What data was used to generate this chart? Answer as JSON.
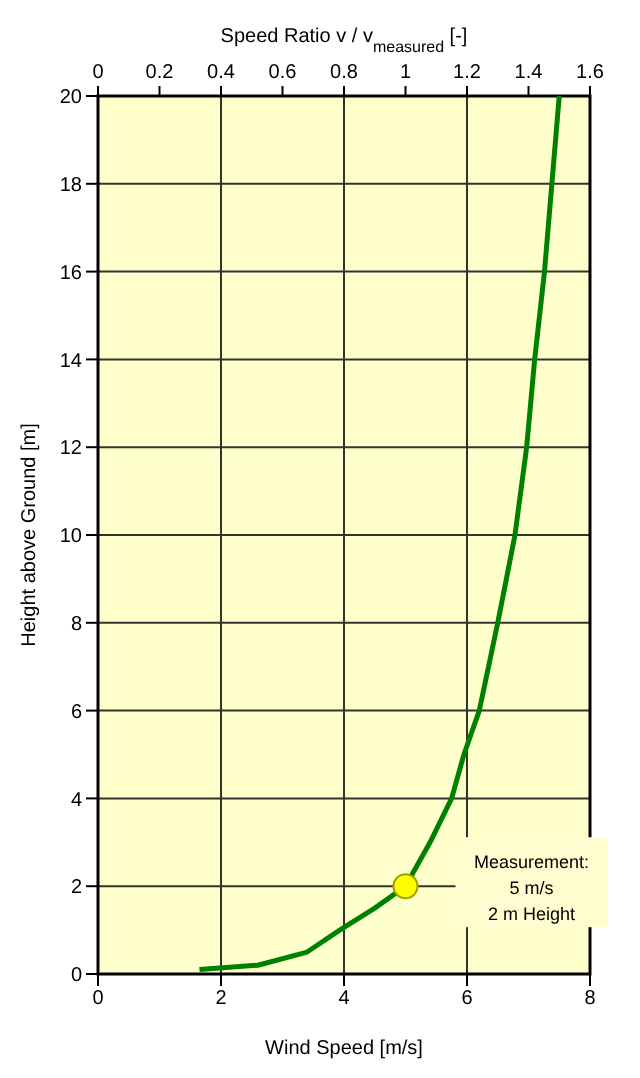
{
  "chart_data": {
    "type": "line",
    "xlabel": "Wind Speed   [m/s]",
    "x2label": "Speed Ratio   v / v$_{measured}$ [-]",
    "ylabel": "Height above Ground   [m]",
    "x": [
      1.65,
      2.6,
      3.4,
      3.93,
      4.5,
      5,
      5.4,
      5.75,
      5.95,
      6.2,
      6.35,
      6.5,
      6.64,
      6.78,
      6.97,
      7.1,
      7.26,
      7.38,
      7.5
    ],
    "series": [
      {
        "color": "#008000",
        "values": [
          0.1,
          0.2,
          0.5,
          1,
          1.5,
          2,
          3,
          4,
          5,
          6,
          7,
          8,
          9,
          10,
          12,
          14,
          16,
          18,
          20
        ]
      },
      {
        "type": "scatter",
        "color": "#ffff00",
        "marker": "circle",
        "x": [
          5
        ],
        "values": [
          2
        ]
      }
    ],
    "annotations": [
      "Measurement:\n5 m/s\n2 m Height"
    ],
    "xlim": [
      0,
      8
    ],
    "xticks": [
      0,
      2,
      4,
      6,
      8
    ],
    "x2lim": [
      0,
      1.6
    ],
    "x2ticks": [
      0,
      0.2,
      0.4,
      0.6,
      0.8,
      1,
      1.2,
      1.4,
      1.6
    ],
    "ylim": [
      0,
      20
    ],
    "yticks": [
      0,
      2,
      4,
      6,
      8,
      10,
      12,
      14,
      16,
      18,
      20
    ],
    "grid": true,
    "legend": false,
    "marker": "none",
    "line_style": "solid"
  }
}
